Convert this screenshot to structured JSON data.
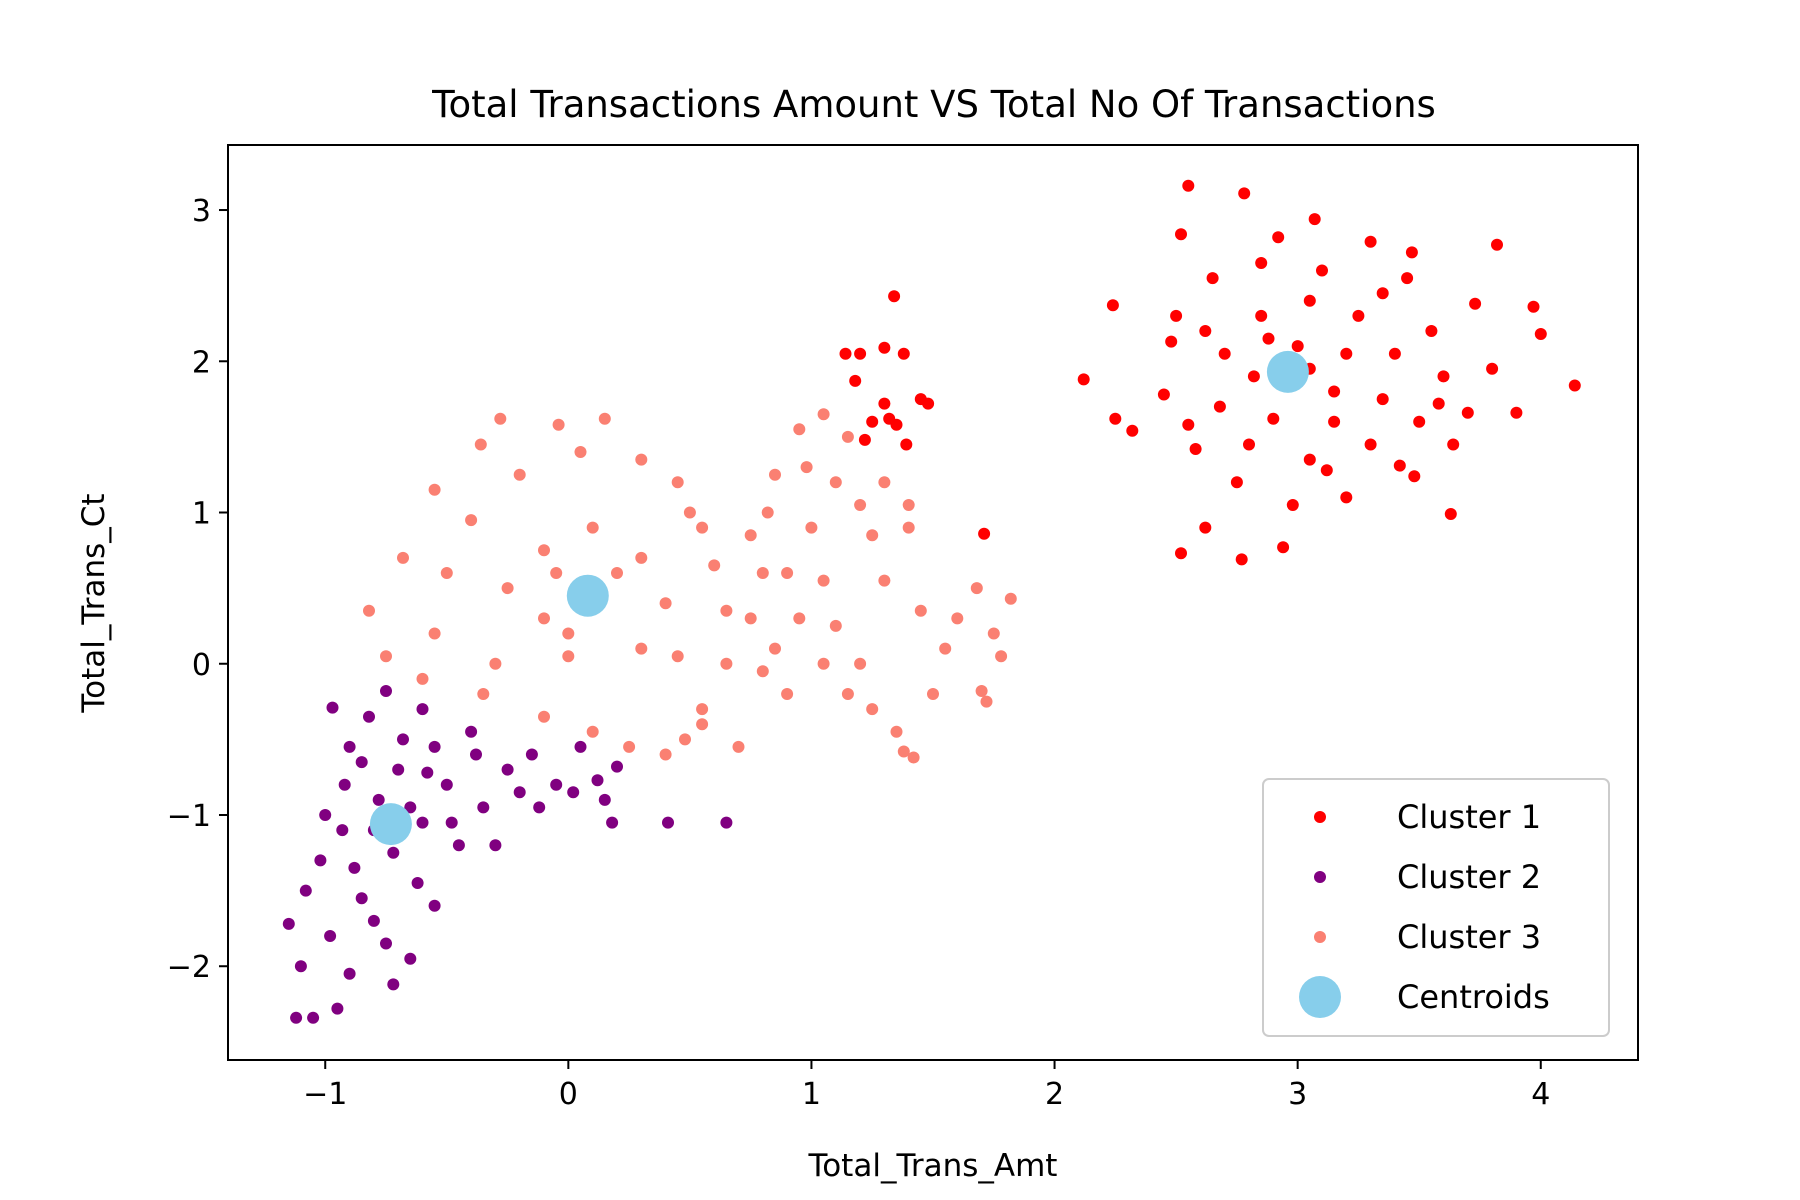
{
  "chart_data": {
    "type": "scatter",
    "title": "Total Transactions Amount VS Total No Of Transactions",
    "xlabel": "Total_Trans_Amt",
    "ylabel": "Total_Trans_Ct",
    "xlim": [
      -1.4,
      4.4
    ],
    "ylim": [
      -2.62,
      3.43
    ],
    "xticks": [
      -1,
      0,
      1,
      2,
      3,
      4
    ],
    "yticks": [
      -2,
      -1,
      0,
      1,
      2,
      3
    ],
    "xtick_labels": [
      "−1",
      "0",
      "1",
      "2",
      "3",
      "4"
    ],
    "ytick_labels": [
      "−2",
      "−1",
      "0",
      "1",
      "2",
      "3"
    ],
    "grid": false,
    "legend_position": "lower-right",
    "series": [
      {
        "name": "Cluster 1",
        "color": "#ff0000",
        "points": [
          [
            2.55,
            3.16
          ],
          [
            2.78,
            3.11
          ],
          [
            3.07,
            2.94
          ],
          [
            3.82,
            2.77
          ],
          [
            3.97,
            2.36
          ],
          [
            4.0,
            2.18
          ],
          [
            4.14,
            1.84
          ],
          [
            3.9,
            1.66
          ],
          [
            3.64,
            1.45
          ],
          [
            3.63,
            0.99
          ],
          [
            3.48,
            1.24
          ],
          [
            2.52,
            0.73
          ],
          [
            2.77,
            0.69
          ],
          [
            2.94,
            0.77
          ],
          [
            2.62,
            0.9
          ],
          [
            2.25,
            1.62
          ],
          [
            2.12,
            1.88
          ],
          [
            2.24,
            2.37
          ],
          [
            2.32,
            1.54
          ],
          [
            2.48,
            2.13
          ],
          [
            2.52,
            2.84
          ],
          [
            2.92,
            2.82
          ],
          [
            3.3,
            2.79
          ],
          [
            3.47,
            2.72
          ],
          [
            3.73,
            2.38
          ],
          [
            3.8,
            1.95
          ],
          [
            3.7,
            1.66
          ],
          [
            3.42,
            1.31
          ],
          [
            3.2,
            1.1
          ],
          [
            2.98,
            1.05
          ],
          [
            2.75,
            1.2
          ],
          [
            2.58,
            1.42
          ],
          [
            2.45,
            1.78
          ],
          [
            2.5,
            2.3
          ],
          [
            2.65,
            2.55
          ],
          [
            2.85,
            2.65
          ],
          [
            3.1,
            2.6
          ],
          [
            3.35,
            2.45
          ],
          [
            3.55,
            2.2
          ],
          [
            3.6,
            1.9
          ],
          [
            3.5,
            1.6
          ],
          [
            3.3,
            1.45
          ],
          [
            3.05,
            1.35
          ],
          [
            2.8,
            1.45
          ],
          [
            2.68,
            1.7
          ],
          [
            2.7,
            2.05
          ],
          [
            2.85,
            2.3
          ],
          [
            3.05,
            2.4
          ],
          [
            3.25,
            2.3
          ],
          [
            3.4,
            2.05
          ],
          [
            3.35,
            1.75
          ],
          [
            3.15,
            1.6
          ],
          [
            2.9,
            1.62
          ],
          [
            2.82,
            1.9
          ],
          [
            3.0,
            2.1
          ],
          [
            3.2,
            2.05
          ],
          [
            3.15,
            1.8
          ],
          [
            2.95,
            1.85
          ],
          [
            3.05,
            1.95
          ],
          [
            2.88,
            2.15
          ],
          [
            3.45,
            2.55
          ],
          [
            2.62,
            2.2
          ],
          [
            2.55,
            1.58
          ],
          [
            3.12,
            1.28
          ],
          [
            3.58,
            1.72
          ],
          [
            1.34,
            2.43
          ],
          [
            1.3,
            2.09
          ],
          [
            1.2,
            2.05
          ],
          [
            1.14,
            2.05
          ],
          [
            1.38,
            2.05
          ],
          [
            1.18,
            1.87
          ],
          [
            1.3,
            1.72
          ],
          [
            1.45,
            1.75
          ],
          [
            1.48,
            1.72
          ],
          [
            1.35,
            1.58
          ],
          [
            1.25,
            1.6
          ],
          [
            1.22,
            1.48
          ],
          [
            1.39,
            1.45
          ],
          [
            1.71,
            0.86
          ],
          [
            1.32,
            1.62
          ]
        ]
      },
      {
        "name": "Cluster 2",
        "color": "#800080",
        "points": [
          [
            -0.97,
            -0.29
          ],
          [
            0.41,
            -1.05
          ],
          [
            0.65,
            -1.05
          ],
          [
            0.18,
            -1.05
          ],
          [
            -1.15,
            -1.72
          ],
          [
            -1.12,
            -2.34
          ],
          [
            -1.05,
            -2.34
          ],
          [
            -0.95,
            -2.28
          ],
          [
            -0.72,
            -2.12
          ],
          [
            -0.65,
            -1.95
          ],
          [
            -0.55,
            -1.6
          ],
          [
            -0.3,
            -1.2
          ],
          [
            -0.12,
            -0.95
          ],
          [
            0.02,
            -0.85
          ],
          [
            0.12,
            -0.77
          ],
          [
            0.2,
            -0.68
          ],
          [
            -0.15,
            -0.6
          ],
          [
            -0.4,
            -0.45
          ],
          [
            -0.6,
            -0.3
          ],
          [
            -0.75,
            -0.18
          ],
          [
            -0.9,
            -0.55
          ],
          [
            -1.0,
            -1.0
          ],
          [
            -1.08,
            -1.5
          ],
          [
            -1.1,
            -2.0
          ],
          [
            -0.98,
            -1.8
          ],
          [
            -0.88,
            -1.35
          ],
          [
            -0.78,
            -0.9
          ],
          [
            -0.68,
            -0.5
          ],
          [
            -0.5,
            -0.8
          ],
          [
            -0.35,
            -0.95
          ],
          [
            -0.45,
            -1.2
          ],
          [
            -0.62,
            -1.45
          ],
          [
            -0.8,
            -1.7
          ],
          [
            -0.9,
            -2.05
          ],
          [
            -0.72,
            -1.25
          ],
          [
            -0.6,
            -1.05
          ],
          [
            -0.7,
            -0.7
          ],
          [
            -0.82,
            -0.35
          ],
          [
            -0.55,
            -0.55
          ],
          [
            -0.25,
            -0.7
          ],
          [
            0.15,
            -0.9
          ],
          [
            0.05,
            -0.55
          ],
          [
            -0.05,
            -0.8
          ],
          [
            -0.2,
            -0.85
          ],
          [
            -0.93,
            -1.1
          ],
          [
            -1.02,
            -1.3
          ],
          [
            -0.85,
            -1.55
          ],
          [
            -0.75,
            -1.85
          ],
          [
            -0.92,
            -0.8
          ],
          [
            -0.65,
            -0.95
          ],
          [
            -0.58,
            -0.72
          ],
          [
            -0.48,
            -1.05
          ],
          [
            -0.38,
            -0.6
          ],
          [
            -0.85,
            -0.65
          ],
          [
            -0.8,
            -1.1
          ]
        ]
      },
      {
        "name": "Cluster 3",
        "color": "#fa8072",
        "points": [
          [
            -0.28,
            1.62
          ],
          [
            -0.04,
            1.58
          ],
          [
            0.15,
            1.62
          ],
          [
            -0.36,
            1.45
          ],
          [
            -0.55,
            1.15
          ],
          [
            -0.68,
            0.7
          ],
          [
            -0.82,
            0.35
          ],
          [
            -0.75,
            0.05
          ],
          [
            -0.6,
            -0.1
          ],
          [
            -0.35,
            -0.2
          ],
          [
            -0.1,
            -0.35
          ],
          [
            0.1,
            -0.45
          ],
          [
            0.25,
            -0.55
          ],
          [
            0.4,
            -0.6
          ],
          [
            0.48,
            -0.5
          ],
          [
            0.55,
            -0.3
          ],
          [
            0.65,
            0.0
          ],
          [
            0.75,
            0.3
          ],
          [
            0.8,
            0.6
          ],
          [
            0.55,
            0.9
          ],
          [
            0.45,
            1.2
          ],
          [
            0.3,
            1.35
          ],
          [
            0.05,
            1.4
          ],
          [
            -0.2,
            1.25
          ],
          [
            -0.4,
            0.95
          ],
          [
            -0.5,
            0.6
          ],
          [
            -0.55,
            0.2
          ],
          [
            -0.3,
            0.0
          ],
          [
            0.0,
            0.05
          ],
          [
            0.3,
            0.1
          ],
          [
            0.4,
            0.4
          ],
          [
            0.3,
            0.7
          ],
          [
            0.1,
            0.9
          ],
          [
            -0.1,
            0.75
          ],
          [
            -0.25,
            0.5
          ],
          [
            -0.1,
            0.3
          ],
          [
            0.1,
            0.45
          ],
          [
            0.2,
            0.6
          ],
          [
            -0.05,
            0.6
          ],
          [
            0.0,
            0.2
          ],
          [
            0.65,
            0.35
          ],
          [
            0.85,
            0.1
          ],
          [
            0.9,
            -0.2
          ],
          [
            0.55,
            -0.4
          ],
          [
            0.7,
            -0.55
          ],
          [
            0.85,
            1.25
          ],
          [
            0.95,
            1.55
          ],
          [
            1.05,
            1.65
          ],
          [
            1.15,
            1.5
          ],
          [
            1.1,
            1.2
          ],
          [
            1.0,
            0.9
          ],
          [
            0.9,
            0.6
          ],
          [
            0.95,
            0.3
          ],
          [
            1.05,
            0.0
          ],
          [
            1.15,
            -0.2
          ],
          [
            1.25,
            -0.3
          ],
          [
            1.35,
            -0.45
          ],
          [
            1.42,
            -0.62
          ],
          [
            1.38,
            -0.58
          ],
          [
            1.5,
            -0.2
          ],
          [
            1.55,
            0.1
          ],
          [
            1.6,
            0.3
          ],
          [
            1.68,
            0.5
          ],
          [
            1.75,
            0.2
          ],
          [
            1.78,
            0.05
          ],
          [
            1.82,
            0.43
          ],
          [
            1.7,
            -0.18
          ],
          [
            1.72,
            -0.25
          ],
          [
            1.45,
            0.35
          ],
          [
            1.3,
            0.55
          ],
          [
            1.25,
            0.85
          ],
          [
            1.3,
            1.2
          ],
          [
            1.4,
            0.9
          ],
          [
            1.2,
            1.05
          ],
          [
            1.05,
            0.55
          ],
          [
            1.1,
            0.25
          ],
          [
            1.2,
            0.0
          ],
          [
            0.8,
            -0.05
          ],
          [
            0.75,
            0.85
          ],
          [
            0.98,
            1.3
          ],
          [
            0.5,
            1.0
          ],
          [
            0.6,
            0.65
          ],
          [
            0.45,
            0.05
          ],
          [
            1.4,
            1.05
          ],
          [
            0.82,
            1.0
          ]
        ]
      }
    ],
    "centroids": {
      "name": "Centroids",
      "color": "#87ceeb",
      "points": [
        [
          -0.73,
          -1.06
        ],
        [
          0.08,
          0.45
        ],
        [
          2.96,
          1.93
        ]
      ]
    }
  }
}
